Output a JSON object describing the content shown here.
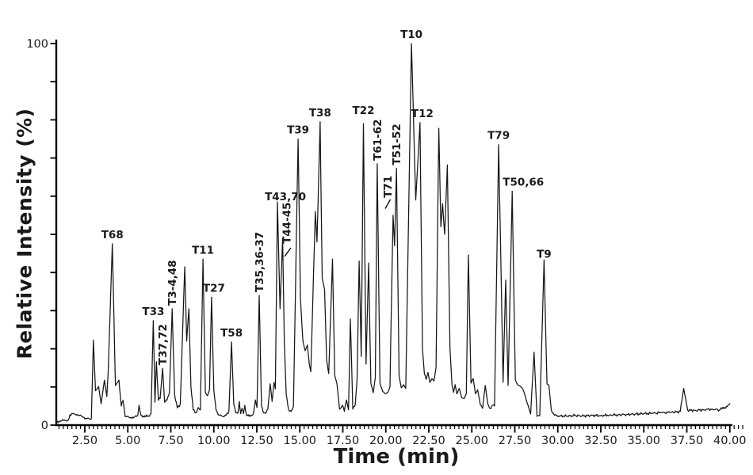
{
  "chart_data": {
    "type": "line",
    "subtype": "chromatogram",
    "title": "",
    "xlabel": "Time (min)",
    "ylabel": "Relative Intensity (%)",
    "xlim": [
      0.9,
      40.2
    ],
    "ylim": [
      0,
      100
    ],
    "x_tick_labels": [
      "2.50",
      "5.00",
      "7.50",
      "10.00",
      "12.50",
      "15.00",
      "17.50",
      "20.00",
      "22.50",
      "25.00",
      "27.50",
      "30.00",
      "32.50",
      "35.00",
      "37.50",
      "40.00"
    ],
    "x_minor_tick_step": 0.25,
    "y_ticks": [
      0,
      10,
      20,
      30,
      40,
      50,
      60,
      70,
      80,
      90,
      100
    ],
    "y_tick_labels": [
      {
        "value": 0,
        "label": "0"
      },
      {
        "value": 100,
        "label": "100"
      }
    ],
    "grid": false,
    "legend": "none",
    "colors": {
      "line": "#161616",
      "axis": "#000000",
      "text": "#1a1a1a"
    },
    "peaks": [
      {
        "label": "T68",
        "t": 4.1,
        "intensity": 47.5,
        "orient": "h"
      },
      {
        "label": "T33",
        "t": 6.48,
        "intensity": 27.4,
        "orient": "h"
      },
      {
        "label": "T37,72",
        "t": 7.02,
        "intensity": 14.9,
        "orient": "v"
      },
      {
        "label": "T3-4,48",
        "t": 7.58,
        "intensity": 30.5,
        "orient": "v"
      },
      {
        "label": "T11",
        "t": 9.37,
        "intensity": 43.5,
        "orient": "h"
      },
      {
        "label": "T27",
        "t": 9.87,
        "intensity": 33.5,
        "orient": "h",
        "dx": 3
      },
      {
        "label": "T58",
        "t": 11.03,
        "intensity": 21.8,
        "orient": "h"
      },
      {
        "label": "T35,36-37",
        "t": 12.64,
        "intensity": 34,
        "orient": "v"
      },
      {
        "label": "T43,70",
        "t": 13.7,
        "intensity": 58.5,
        "orient": "h",
        "dx": 10,
        "dy": 5
      },
      {
        "label": "T44-45",
        "t": 14.0,
        "intensity": 49,
        "orient": "v",
        "dx": 5,
        "dy": 11
      },
      {
        "label": "T39",
        "t": 14.9,
        "intensity": 75,
        "orient": "h"
      },
      {
        "label": "T38",
        "t": 16.18,
        "intensity": 79.5,
        "orient": "h"
      },
      {
        "label": "T22",
        "t": 18.7,
        "intensity": 79,
        "orient": "h",
        "dy": -5
      },
      {
        "label": "T61-62",
        "t": 19.5,
        "intensity": 68.5,
        "orient": "v"
      },
      {
        "label": "T71",
        "t": 20.42,
        "intensity": 55,
        "orient": "v",
        "dx": -7,
        "dy": -18
      },
      {
        "label": "T51-52",
        "t": 20.62,
        "intensity": 67.3,
        "orient": "v"
      },
      {
        "label": "T10",
        "t": 21.49,
        "intensity": 100,
        "orient": "h"
      },
      {
        "label": "T12",
        "t": 21.99,
        "intensity": 79.3,
        "orient": "h",
        "dx": 3
      },
      {
        "label": "T79",
        "t": 26.56,
        "intensity": 73.5,
        "orient": "h"
      },
      {
        "label": "T50,66",
        "t": 27.35,
        "intensity": 61.3,
        "orient": "h",
        "dx": 14
      },
      {
        "label": "T9",
        "t": 29.2,
        "intensity": 43.3,
        "orient": "h",
        "dy": 4
      }
    ],
    "pointer_lines": [
      {
        "from": [
          367,
          313
        ],
        "to": [
          359,
          324
        ]
      },
      {
        "from": [
          492.5,
          252
        ],
        "to": [
          486,
          263.5
        ]
      }
    ],
    "trace": [
      [
        0.9,
        1.0
      ],
      [
        1.1,
        1.1
      ],
      [
        1.35,
        1.2
      ],
      [
        1.55,
        1.4
      ],
      [
        1.63,
        2.7
      ],
      [
        1.8,
        3.0
      ],
      [
        2.05,
        2.8
      ],
      [
        2.35,
        2.2
      ],
      [
        2.6,
        1.7
      ],
      [
        2.88,
        1.6
      ],
      [
        3.0,
        22.3
      ],
      [
        3.12,
        9.0
      ],
      [
        3.3,
        10.1
      ],
      [
        3.45,
        5.6
      ],
      [
        3.64,
        11.8
      ],
      [
        3.78,
        7.5
      ],
      [
        3.86,
        13.9
      ],
      [
        4.1,
        47.5
      ],
      [
        4.28,
        10.4
      ],
      [
        4.48,
        11.8
      ],
      [
        4.62,
        5.0
      ],
      [
        4.72,
        6.5
      ],
      [
        4.85,
        2.2
      ],
      [
        5.1,
        2.0
      ],
      [
        5.4,
        2.2
      ],
      [
        5.58,
        2.6
      ],
      [
        5.65,
        5.2
      ],
      [
        5.76,
        2.6
      ],
      [
        5.95,
        2.1
      ],
      [
        6.2,
        2.4
      ],
      [
        6.35,
        3.0
      ],
      [
        6.48,
        27.4
      ],
      [
        6.58,
        6.0
      ],
      [
        6.66,
        16.6
      ],
      [
        6.78,
        6.5
      ],
      [
        6.88,
        7.0
      ],
      [
        7.02,
        14.9
      ],
      [
        7.14,
        6.0
      ],
      [
        7.28,
        6.6
      ],
      [
        7.42,
        8.5
      ],
      [
        7.58,
        30.5
      ],
      [
        7.72,
        8.0
      ],
      [
        7.88,
        4.5
      ],
      [
        8.05,
        5.5
      ],
      [
        8.31,
        41.5
      ],
      [
        8.42,
        22.0
      ],
      [
        8.55,
        30.5
      ],
      [
        8.67,
        10.0
      ],
      [
        8.8,
        4.0
      ],
      [
        8.95,
        3.2
      ],
      [
        9.1,
        4.6
      ],
      [
        9.22,
        4.0
      ],
      [
        9.37,
        43.5
      ],
      [
        9.51,
        8.5
      ],
      [
        9.63,
        7.7
      ],
      [
        9.75,
        9.2
      ],
      [
        9.87,
        33.5
      ],
      [
        10.0,
        9.0
      ],
      [
        10.13,
        4.0
      ],
      [
        10.3,
        2.6
      ],
      [
        10.5,
        2.3
      ],
      [
        10.72,
        2.6
      ],
      [
        10.88,
        3.6
      ],
      [
        11.03,
        21.8
      ],
      [
        11.16,
        5.5
      ],
      [
        11.28,
        3.2
      ],
      [
        11.4,
        3.1
      ],
      [
        11.48,
        6.2
      ],
      [
        11.56,
        3.0
      ],
      [
        11.64,
        4.4
      ],
      [
        11.72,
        3.0
      ],
      [
        11.8,
        5.2
      ],
      [
        11.9,
        2.6
      ],
      [
        12.05,
        2.3
      ],
      [
        12.2,
        2.6
      ],
      [
        12.31,
        3.3
      ],
      [
        12.42,
        6.6
      ],
      [
        12.51,
        4.6
      ],
      [
        12.64,
        34.0
      ],
      [
        12.77,
        5.0
      ],
      [
        12.9,
        3.2
      ],
      [
        13.02,
        3.1
      ],
      [
        13.14,
        4.2
      ],
      [
        13.28,
        10.8
      ],
      [
        13.39,
        6.2
      ],
      [
        13.5,
        11.2
      ],
      [
        13.58,
        9.5
      ],
      [
        13.7,
        58.5
      ],
      [
        13.85,
        30.5
      ],
      [
        14.0,
        49.0
      ],
      [
        14.1,
        22.0
      ],
      [
        14.21,
        8.0
      ],
      [
        14.35,
        4.2
      ],
      [
        14.5,
        3.6
      ],
      [
        14.63,
        5.0
      ],
      [
        14.9,
        75.0
      ],
      [
        15.04,
        33.0
      ],
      [
        15.18,
        22.0
      ],
      [
        15.31,
        19.5
      ],
      [
        15.44,
        21.0
      ],
      [
        15.55,
        16.0
      ],
      [
        15.64,
        14.0
      ],
      [
        15.9,
        56.0
      ],
      [
        16.0,
        48.0
      ],
      [
        16.18,
        79.5
      ],
      [
        16.3,
        38.5
      ],
      [
        16.44,
        35.5
      ],
      [
        16.56,
        17.0
      ],
      [
        16.68,
        13.5
      ],
      [
        16.9,
        43.5
      ],
      [
        17.03,
        13.0
      ],
      [
        17.16,
        10.8
      ],
      [
        17.31,
        4.2
      ],
      [
        17.48,
        5.2
      ],
      [
        17.59,
        3.6
      ],
      [
        17.71,
        6.6
      ],
      [
        17.83,
        4.0
      ],
      [
        17.94,
        27.8
      ],
      [
        18.08,
        4.2
      ],
      [
        18.22,
        5.2
      ],
      [
        18.33,
        12.0
      ],
      [
        18.45,
        43.0
      ],
      [
        18.57,
        18.0
      ],
      [
        18.7,
        79.0
      ],
      [
        18.85,
        16.0
      ],
      [
        19.0,
        42.5
      ],
      [
        19.13,
        11.0
      ],
      [
        19.27,
        8.5
      ],
      [
        19.39,
        12.5
      ],
      [
        19.5,
        68.5
      ],
      [
        19.66,
        11.0
      ],
      [
        19.82,
        8.8
      ],
      [
        19.98,
        8.2
      ],
      [
        20.12,
        8.6
      ],
      [
        20.24,
        10.0
      ],
      [
        20.42,
        55.0
      ],
      [
        20.51,
        47.0
      ],
      [
        20.62,
        67.3
      ],
      [
        20.77,
        13.0
      ],
      [
        20.9,
        9.8
      ],
      [
        21.03,
        10.6
      ],
      [
        21.16,
        9.6
      ],
      [
        21.49,
        100.0
      ],
      [
        21.74,
        59.0
      ],
      [
        21.99,
        79.3
      ],
      [
        22.13,
        20.0
      ],
      [
        22.24,
        13.5
      ],
      [
        22.35,
        12.0
      ],
      [
        22.45,
        13.8
      ],
      [
        22.56,
        11.2
      ],
      [
        22.68,
        12.2
      ],
      [
        22.8,
        11.6
      ],
      [
        22.92,
        15.0
      ],
      [
        23.08,
        77.8
      ],
      [
        23.2,
        52.0
      ],
      [
        23.3,
        58.0
      ],
      [
        23.42,
        50.0
      ],
      [
        23.58,
        68.2
      ],
      [
        23.73,
        20.0
      ],
      [
        23.85,
        10.4
      ],
      [
        23.94,
        8.6
      ],
      [
        24.03,
        10.6
      ],
      [
        24.13,
        8.2
      ],
      [
        24.27,
        9.6
      ],
      [
        24.41,
        7.2
      ],
      [
        24.56,
        7.0
      ],
      [
        24.68,
        8.2
      ],
      [
        24.8,
        44.6
      ],
      [
        24.95,
        11.0
      ],
      [
        25.08,
        12.2
      ],
      [
        25.21,
        8.2
      ],
      [
        25.34,
        9.3
      ],
      [
        25.49,
        5.4
      ],
      [
        25.63,
        4.4
      ],
      [
        25.78,
        10.4
      ],
      [
        25.93,
        5.6
      ],
      [
        26.07,
        4.4
      ],
      [
        26.2,
        5.2
      ],
      [
        26.32,
        5.0
      ],
      [
        26.56,
        73.5
      ],
      [
        26.82,
        11.2
      ],
      [
        26.97,
        38.0
      ],
      [
        27.11,
        10.4
      ],
      [
        27.35,
        61.3
      ],
      [
        27.53,
        11.8
      ],
      [
        27.66,
        10.6
      ],
      [
        27.82,
        10.2
      ],
      [
        27.97,
        9.4
      ],
      [
        28.12,
        7.4
      ],
      [
        28.27,
        5.2
      ],
      [
        28.42,
        2.9
      ],
      [
        28.62,
        19.1
      ],
      [
        28.79,
        2.3
      ],
      [
        28.95,
        2.5
      ],
      [
        29.2,
        43.3
      ],
      [
        29.37,
        10.8
      ],
      [
        29.48,
        10.4
      ],
      [
        29.62,
        4.0
      ],
      [
        29.8,
        2.6
      ],
      [
        30.05,
        2.4
      ],
      [
        30.5,
        2.35
      ],
      [
        31.0,
        2.5
      ],
      [
        31.5,
        2.4
      ],
      [
        32.0,
        2.55
      ],
      [
        32.5,
        2.5
      ],
      [
        33.0,
        2.65
      ],
      [
        33.5,
        2.7
      ],
      [
        34.0,
        2.8
      ],
      [
        34.5,
        2.9
      ],
      [
        35.0,
        3.0
      ],
      [
        35.5,
        3.1
      ],
      [
        36.0,
        3.25
      ],
      [
        36.5,
        3.3
      ],
      [
        36.9,
        3.45
      ],
      [
        37.12,
        3.6
      ],
      [
        37.32,
        9.6
      ],
      [
        37.55,
        3.9
      ],
      [
        38.0,
        3.85
      ],
      [
        38.5,
        4.05
      ],
      [
        39.0,
        4.2
      ],
      [
        39.4,
        4.0
      ],
      [
        39.7,
        4.6
      ],
      [
        39.9,
        5.3
      ],
      [
        40.0,
        5.6
      ]
    ]
  }
}
